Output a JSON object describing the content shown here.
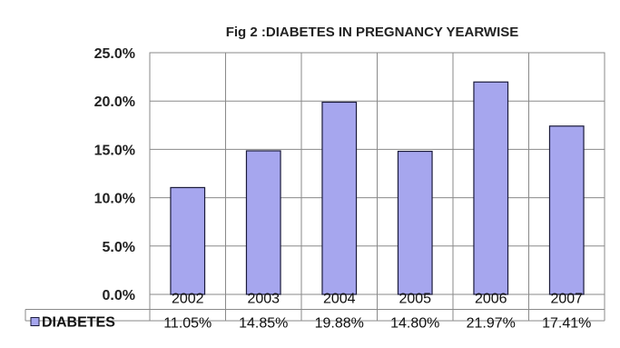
{
  "chart_data": {
    "type": "bar",
    "title": "Fig 2 :DIABETES IN PREGNANCY YEARWISE",
    "categories": [
      "2002",
      "2003",
      "2004",
      "2005",
      "2006",
      "2007"
    ],
    "series": [
      {
        "name": "DIABETES",
        "values": [
          11.05,
          14.85,
          19.88,
          14.8,
          21.97,
          17.41
        ],
        "labels": [
          "11.05%",
          "14.85%",
          "19.88%",
          "14.80%",
          "21.97%",
          "17.41%"
        ]
      }
    ],
    "ylim": [
      0,
      25
    ],
    "yticks": [
      "0.0%",
      "5.0%",
      "10.0%",
      "15.0%",
      "20.0%",
      "25.0%"
    ],
    "grid": true,
    "legend": "data-table",
    "colors": {
      "bar": "#a6a6ee",
      "bar_stroke": "#1a1a3a",
      "grid": "#8a8a8a"
    }
  }
}
